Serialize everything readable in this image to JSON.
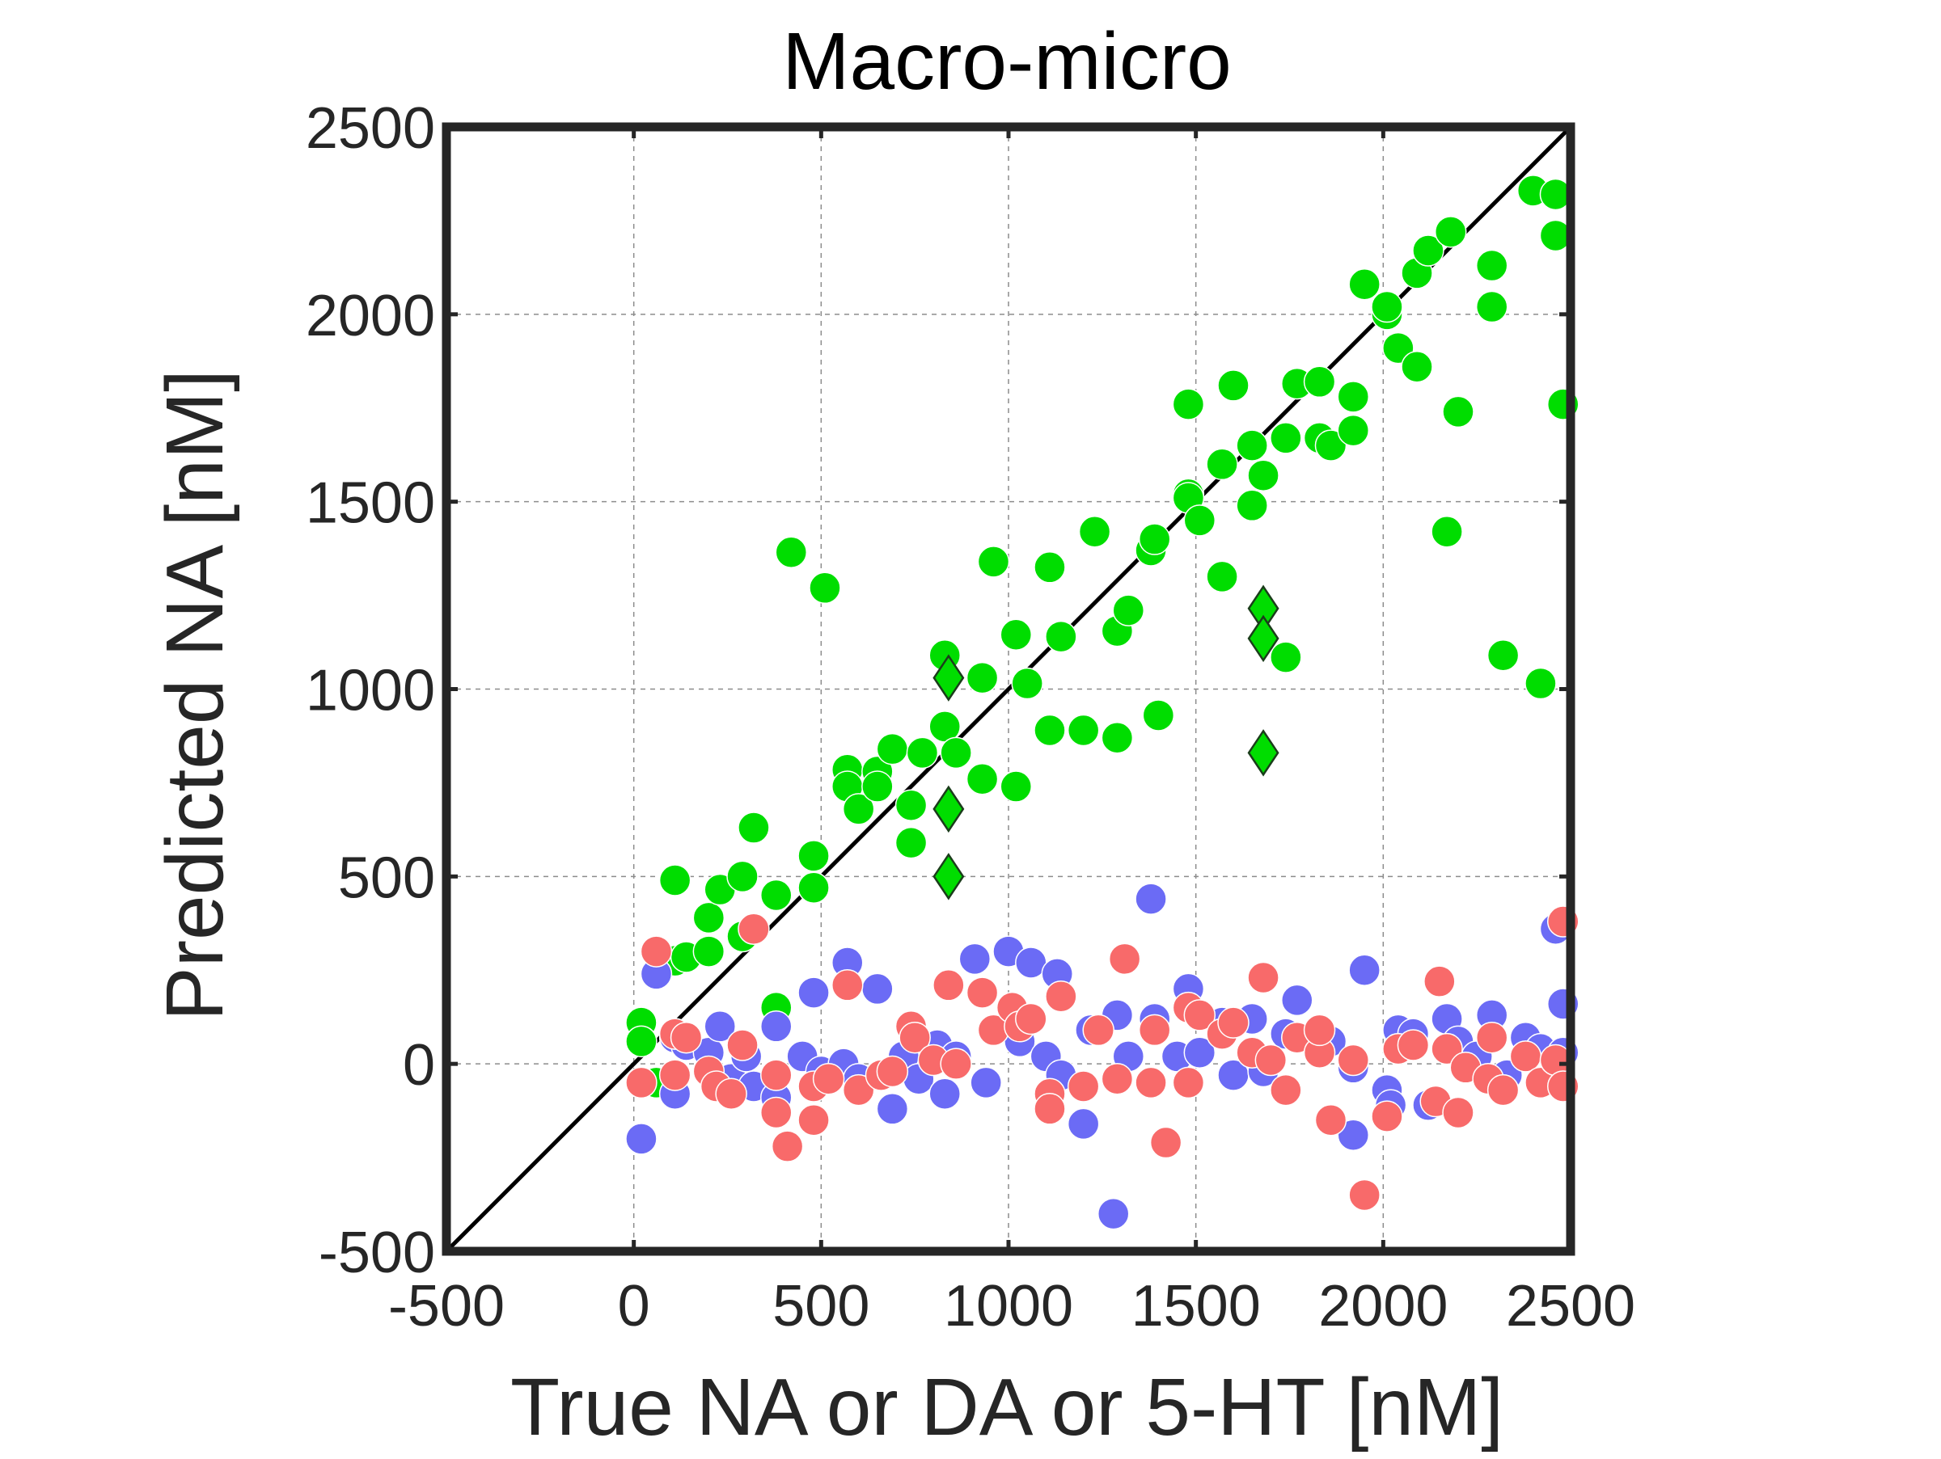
{
  "chart_data": {
    "type": "scatter",
    "title": "Macro-micro",
    "xlabel": "True NA or DA or 5-HT [nM]",
    "ylabel": "Predicted NA [nM]",
    "xlim": [
      -500,
      2500
    ],
    "ylim": [
      -500,
      2500
    ],
    "xticks": [
      -500,
      0,
      500,
      1000,
      1500,
      2000,
      2500
    ],
    "yticks": [
      -500,
      0,
      500,
      1000,
      1500,
      2000,
      2500
    ],
    "xtick_labels": [
      "-500",
      "0",
      "500",
      "1000",
      "1500",
      "2000",
      "2500"
    ],
    "ytick_labels": [
      "-500",
      "0",
      "500",
      "1000",
      "1500",
      "2000",
      "2500"
    ],
    "grid": true,
    "identity_line": {
      "from": [
        -500,
        -500
      ],
      "to": [
        2500,
        2500
      ],
      "color": "#000000"
    },
    "colors": {
      "green": "#00dd00",
      "blue": "#6b6bf5",
      "red": "#f86a6a",
      "axes": "#262626",
      "grid": "#8c8c8c",
      "diamond_outline": "#1b3d1b"
    },
    "series": [
      {
        "color": "#00dd00",
        "marker": "circle",
        "points": [
          [
            20,
            110
          ],
          [
            20,
            60
          ],
          [
            60,
            -50
          ],
          [
            110,
            490
          ],
          [
            110,
            275
          ],
          [
            140,
            285
          ],
          [
            200,
            390
          ],
          [
            200,
            300
          ],
          [
            230,
            465
          ],
          [
            290,
            500
          ],
          [
            290,
            340
          ],
          [
            320,
            630
          ],
          [
            380,
            450
          ],
          [
            380,
            150
          ],
          [
            420,
            1365
          ],
          [
            480,
            555
          ],
          [
            480,
            470
          ],
          [
            510,
            1270
          ],
          [
            570,
            785
          ],
          [
            570,
            740
          ],
          [
            600,
            680
          ],
          [
            650,
            780
          ],
          [
            650,
            740
          ],
          [
            690,
            840
          ],
          [
            740,
            690
          ],
          [
            740,
            590
          ],
          [
            770,
            830
          ],
          [
            830,
            1090
          ],
          [
            830,
            900
          ],
          [
            860,
            830
          ],
          [
            930,
            1030
          ],
          [
            930,
            760
          ],
          [
            960,
            1340
          ],
          [
            1020,
            1145
          ],
          [
            1020,
            740
          ],
          [
            1050,
            1015
          ],
          [
            1110,
            1325
          ],
          [
            1110,
            890
          ],
          [
            1140,
            1140
          ],
          [
            1200,
            890
          ],
          [
            1230,
            1420
          ],
          [
            1290,
            1155
          ],
          [
            1290,
            870
          ],
          [
            1320,
            1210
          ],
          [
            1400,
            930
          ],
          [
            1380,
            1370
          ],
          [
            1390,
            1400
          ],
          [
            1480,
            1520
          ],
          [
            1480,
            1510
          ],
          [
            1480,
            1760
          ],
          [
            1510,
            1450
          ],
          [
            1570,
            1300
          ],
          [
            1570,
            1600
          ],
          [
            1600,
            1810
          ],
          [
            1650,
            1650
          ],
          [
            1650,
            1490
          ],
          [
            1680,
            1570
          ],
          [
            1740,
            1085
          ],
          [
            1740,
            1670
          ],
          [
            1770,
            1815
          ],
          [
            1830,
            1820
          ],
          [
            1830,
            1670
          ],
          [
            1860,
            1650
          ],
          [
            1920,
            1780
          ],
          [
            1920,
            1690
          ],
          [
            1950,
            2080
          ],
          [
            2010,
            2000
          ],
          [
            2010,
            2020
          ],
          [
            2040,
            1910
          ],
          [
            2090,
            2110
          ],
          [
            2090,
            1860
          ],
          [
            2120,
            2170
          ],
          [
            2170,
            1420
          ],
          [
            2180,
            2220
          ],
          [
            2200,
            1740
          ],
          [
            2290,
            2130
          ],
          [
            2290,
            2020
          ],
          [
            2320,
            1090
          ],
          [
            2400,
            2330
          ],
          [
            2420,
            1015
          ],
          [
            2460,
            2320
          ],
          [
            2460,
            2210
          ],
          [
            2480,
            1760
          ]
        ]
      },
      {
        "color": "#00dd00",
        "marker": "diamond",
        "points": [
          [
            840,
            1030
          ],
          [
            840,
            680
          ],
          [
            840,
            500
          ],
          [
            1680,
            1215
          ],
          [
            1680,
            1135
          ],
          [
            1680,
            830
          ]
        ]
      },
      {
        "color": "#6b6bf5",
        "marker": "circle",
        "points": [
          [
            20,
            -200
          ],
          [
            60,
            240
          ],
          [
            110,
            70
          ],
          [
            110,
            -80
          ],
          [
            140,
            50
          ],
          [
            200,
            30
          ],
          [
            230,
            100
          ],
          [
            260,
            -40
          ],
          [
            300,
            20
          ],
          [
            320,
            -60
          ],
          [
            380,
            100
          ],
          [
            380,
            -90
          ],
          [
            450,
            20
          ],
          [
            480,
            190
          ],
          [
            500,
            -20
          ],
          [
            560,
            0
          ],
          [
            570,
            270
          ],
          [
            600,
            -40
          ],
          [
            650,
            200
          ],
          [
            690,
            -120
          ],
          [
            720,
            20
          ],
          [
            760,
            -40
          ],
          [
            810,
            50
          ],
          [
            830,
            -80
          ],
          [
            860,
            20
          ],
          [
            910,
            280
          ],
          [
            940,
            -50
          ],
          [
            1000,
            300
          ],
          [
            1030,
            60
          ],
          [
            1060,
            270
          ],
          [
            1100,
            20
          ],
          [
            1130,
            240
          ],
          [
            1140,
            -30
          ],
          [
            1200,
            -160
          ],
          [
            1220,
            90
          ],
          [
            1280,
            -400
          ],
          [
            1290,
            130
          ],
          [
            1320,
            20
          ],
          [
            1380,
            440
          ],
          [
            1390,
            120
          ],
          [
            1450,
            20
          ],
          [
            1480,
            200
          ],
          [
            1510,
            30
          ],
          [
            1570,
            110
          ],
          [
            1600,
            -30
          ],
          [
            1650,
            120
          ],
          [
            1680,
            -20
          ],
          [
            1740,
            80
          ],
          [
            1770,
            170
          ],
          [
            1830,
            40
          ],
          [
            1860,
            60
          ],
          [
            1920,
            -10
          ],
          [
            1920,
            -190
          ],
          [
            1950,
            250
          ],
          [
            2010,
            -70
          ],
          [
            2020,
            -110
          ],
          [
            2040,
            90
          ],
          [
            2080,
            80
          ],
          [
            2120,
            -110
          ],
          [
            2170,
            120
          ],
          [
            2200,
            60
          ],
          [
            2250,
            20
          ],
          [
            2290,
            130
          ],
          [
            2330,
            -30
          ],
          [
            2380,
            70
          ],
          [
            2420,
            40
          ],
          [
            2460,
            360
          ],
          [
            2480,
            160
          ],
          [
            2480,
            30
          ]
        ]
      },
      {
        "color": "#f86a6a",
        "marker": "circle",
        "points": [
          [
            20,
            -50
          ],
          [
            60,
            300
          ],
          [
            110,
            80
          ],
          [
            110,
            -30
          ],
          [
            140,
            70
          ],
          [
            200,
            -20
          ],
          [
            220,
            -60
          ],
          [
            260,
            -80
          ],
          [
            290,
            50
          ],
          [
            320,
            360
          ],
          [
            380,
            -130
          ],
          [
            380,
            -30
          ],
          [
            410,
            -220
          ],
          [
            480,
            -150
          ],
          [
            480,
            -60
          ],
          [
            520,
            -40
          ],
          [
            570,
            210
          ],
          [
            600,
            -70
          ],
          [
            660,
            -30
          ],
          [
            690,
            -20
          ],
          [
            740,
            100
          ],
          [
            750,
            70
          ],
          [
            800,
            10
          ],
          [
            840,
            210
          ],
          [
            860,
            0
          ],
          [
            930,
            190
          ],
          [
            960,
            90
          ],
          [
            1010,
            150
          ],
          [
            1030,
            100
          ],
          [
            1060,
            120
          ],
          [
            1110,
            -80
          ],
          [
            1110,
            -120
          ],
          [
            1140,
            180
          ],
          [
            1200,
            -60
          ],
          [
            1240,
            90
          ],
          [
            1290,
            -40
          ],
          [
            1310,
            280
          ],
          [
            1380,
            -50
          ],
          [
            1390,
            90
          ],
          [
            1420,
            -210
          ],
          [
            1480,
            -50
          ],
          [
            1480,
            150
          ],
          [
            1510,
            130
          ],
          [
            1570,
            80
          ],
          [
            1600,
            110
          ],
          [
            1650,
            30
          ],
          [
            1680,
            230
          ],
          [
            1700,
            10
          ],
          [
            1740,
            -70
          ],
          [
            1770,
            70
          ],
          [
            1830,
            30
          ],
          [
            1830,
            90
          ],
          [
            1860,
            -150
          ],
          [
            1920,
            10
          ],
          [
            1950,
            -350
          ],
          [
            2010,
            -140
          ],
          [
            2040,
            40
          ],
          [
            2080,
            50
          ],
          [
            2140,
            -100
          ],
          [
            2150,
            220
          ],
          [
            2170,
            40
          ],
          [
            2200,
            -130
          ],
          [
            2220,
            -10
          ],
          [
            2280,
            -40
          ],
          [
            2290,
            70
          ],
          [
            2320,
            -70
          ],
          [
            2380,
            20
          ],
          [
            2420,
            -50
          ],
          [
            2460,
            10
          ],
          [
            2480,
            -60
          ],
          [
            2480,
            380
          ]
        ]
      }
    ]
  }
}
